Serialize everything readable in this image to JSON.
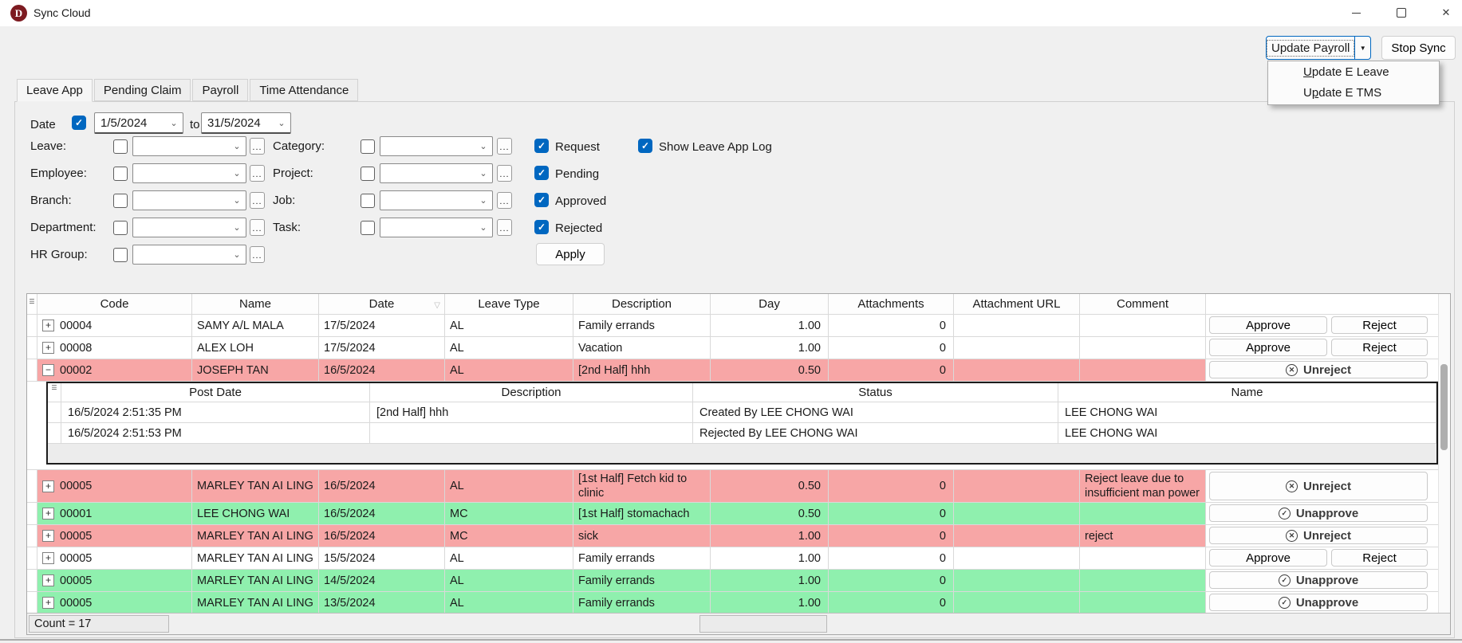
{
  "window": {
    "title": "Sync Cloud"
  },
  "window_controls": {
    "minimize": "minimize",
    "maximize": "maximize",
    "close": "close"
  },
  "toolbar": {
    "update_payroll": "Update Payroll",
    "stop_sync": "Stop Sync"
  },
  "menu": {
    "items": [
      {
        "label": "Update E Leave",
        "accel_index": 0
      },
      {
        "label": "Update E TMS",
        "accel_index": 1
      }
    ]
  },
  "tabs": [
    "Leave App",
    "Pending Claim",
    "Payroll",
    "Time Attendance"
  ],
  "active_tab": 0,
  "filters": {
    "date_label": "Date",
    "date_checked": true,
    "date_from": "1/5/2024",
    "to_word": "to",
    "date_to": "31/5/2024",
    "items": [
      "Leave:",
      "Category:",
      "Employee:",
      "Project:",
      "Branch:",
      "Job:",
      "Department:",
      "Task:",
      "HR Group:"
    ],
    "status": [
      "Request",
      "Pending",
      "Approved",
      "Rejected"
    ],
    "show_log": "Show Leave App Log",
    "apply": "Apply",
    "more_label": "..."
  },
  "grid": {
    "columns": [
      "Code",
      "Name",
      "Date",
      "Leave Type",
      "Description",
      "Day",
      "Attachments",
      "Attachment URL",
      "Comment"
    ],
    "rows": [
      {
        "code": "00004",
        "name": "SAMY A/L MALA",
        "date": "17/5/2024",
        "type": "AL",
        "desc": "Family errands",
        "day": "1.00",
        "att": "0",
        "url": "",
        "comment": "",
        "state": "pending"
      },
      {
        "code": "00008",
        "name": "ALEX LOH",
        "date": "17/5/2024",
        "type": "AL",
        "desc": "Vacation",
        "day": "1.00",
        "att": "0",
        "url": "",
        "comment": "",
        "state": "pending"
      },
      {
        "code": "00002",
        "name": "JOSEPH TAN",
        "date": "16/5/2024",
        "type": "AL",
        "desc": "[2nd Half] hhh",
        "day": "0.50",
        "att": "0",
        "url": "",
        "comment": "",
        "state": "rejected",
        "expanded": true
      },
      {
        "code": "00005",
        "name": "MARLEY TAN AI LING",
        "date": "16/5/2024",
        "type": "AL",
        "desc": "[1st Half] Fetch kid to clinic",
        "day": "0.50",
        "att": "0",
        "url": "",
        "comment": "Reject leave due to insufficient man power",
        "state": "rejected",
        "tall": true
      },
      {
        "code": "00001",
        "name": "LEE CHONG WAI",
        "date": "16/5/2024",
        "type": "MC",
        "desc": "[1st Half] stomachach",
        "day": "0.50",
        "att": "0",
        "url": "",
        "comment": "",
        "state": "approved"
      },
      {
        "code": "00005",
        "name": "MARLEY TAN AI LING",
        "date": "16/5/2024",
        "type": "MC",
        "desc": "sick",
        "day": "1.00",
        "att": "0",
        "url": "",
        "comment": "reject",
        "state": "rejected"
      },
      {
        "code": "00005",
        "name": "MARLEY TAN AI LING",
        "date": "15/5/2024",
        "type": "AL",
        "desc": "Family errands",
        "day": "1.00",
        "att": "0",
        "url": "",
        "comment": "",
        "state": "pending"
      },
      {
        "code": "00005",
        "name": "MARLEY TAN AI LING",
        "date": "14/5/2024",
        "type": "AL",
        "desc": "Family errands",
        "day": "1.00",
        "att": "0",
        "url": "",
        "comment": "",
        "state": "approved"
      },
      {
        "code": "00005",
        "name": "MARLEY TAN AI LING",
        "date": "13/5/2024",
        "type": "AL",
        "desc": "Family errands",
        "day": "1.00",
        "att": "0",
        "url": "",
        "comment": "",
        "state": "approved"
      }
    ],
    "log": {
      "columns": [
        "Post Date",
        "Description",
        "Status",
        "Name"
      ],
      "rows": [
        [
          "16/5/2024 2:51:35 PM",
          "[2nd Half] hhh",
          "Created By LEE CHONG WAI",
          "LEE CHONG WAI"
        ],
        [
          "16/5/2024 2:51:53 PM",
          "",
          "Rejected By LEE CHONG WAI",
          "LEE CHONG WAI"
        ]
      ]
    },
    "footer_count": "Count = 17"
  },
  "actions": {
    "approve": "Approve",
    "reject": "Reject",
    "unreject": "Unreject",
    "unapprove": "Unapprove"
  },
  "icons": {
    "chevron": "⌄",
    "check": "✓",
    "expand_plus": "+",
    "expand_minus": "−",
    "unreject_x": "✕",
    "unapprove_check": "✓",
    "burger": "☰",
    "filter_triangle": "▽",
    "dropdown_arrow": "▼",
    "logo_letter": "D",
    "close_x": "✕"
  },
  "colors": {
    "accent": "#0067c0",
    "rejected_row": "#f7a6a6",
    "approved_row": "#8ff0ae",
    "logo": "#7d1b21"
  }
}
